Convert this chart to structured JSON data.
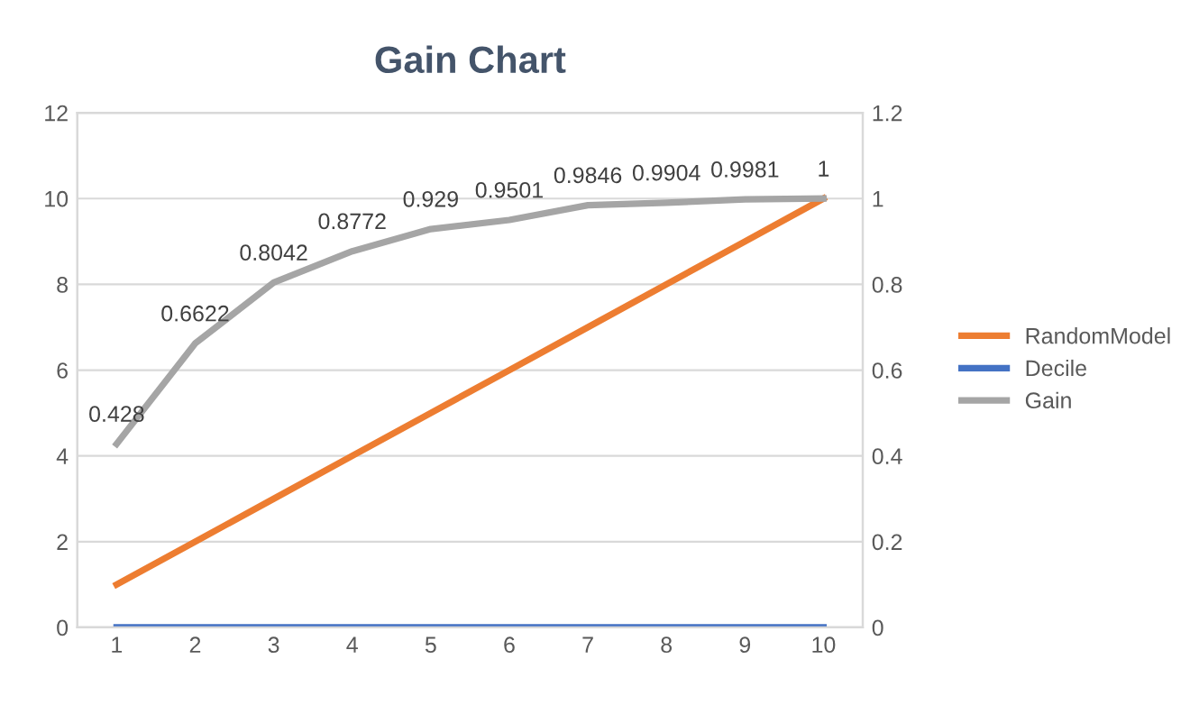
{
  "chart_data": {
    "type": "line",
    "title": "Gain Chart",
    "categories": [
      "1",
      "2",
      "3",
      "4",
      "5",
      "6",
      "7",
      "8",
      "9",
      "10"
    ],
    "series": [
      {
        "name": "RandomModel",
        "color": "#ed7d31",
        "values": [
          1,
          2,
          3,
          4,
          5,
          6,
          7,
          8,
          9,
          10
        ]
      },
      {
        "name": "Decile",
        "color": "#4472c4",
        "values": [
          0,
          0,
          0,
          0,
          0,
          0,
          0,
          0,
          0,
          0
        ]
      },
      {
        "name": "Gain",
        "color": "#a5a5a5",
        "axis": "y2",
        "values": [
          0.428,
          0.6622,
          0.8042,
          0.8772,
          0.929,
          0.9501,
          0.9846,
          0.9904,
          0.9981,
          1
        ],
        "value_labels": [
          "0.428",
          "0.6622",
          "0.8042",
          "0.8772",
          "0.929",
          "0.9501",
          "0.9846",
          "0.9904",
          "0.9981",
          "1"
        ]
      }
    ],
    "ylim": [
      0,
      12
    ],
    "yticks": [
      0,
      2,
      4,
      6,
      8,
      10,
      12
    ],
    "y2lim": [
      0,
      1.2
    ],
    "y2ticks": [
      {
        "value": 0,
        "label": "0"
      },
      {
        "value": 0.2,
        "label": "0.2"
      },
      {
        "value": 0.4,
        "label": "0.4"
      },
      {
        "value": 0.6,
        "label": "0.6"
      },
      {
        "value": 0.8,
        "label": "0.8"
      },
      {
        "value": 1,
        "label": "1"
      },
      {
        "value": 1.2,
        "label": "1.2"
      }
    ],
    "grid": "y",
    "legend": "right",
    "marker": "none",
    "line_style": "solid"
  }
}
